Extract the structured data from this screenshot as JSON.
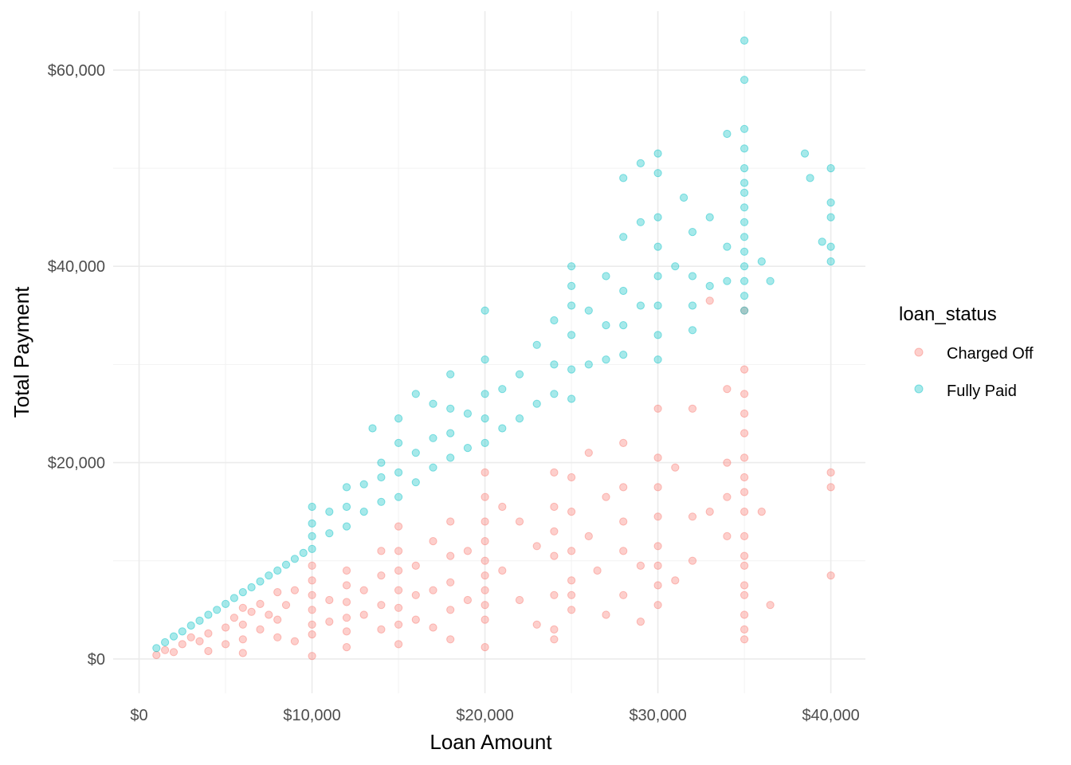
{
  "chart_data": {
    "type": "scatter",
    "title": "",
    "xlabel": "Loan Amount",
    "ylabel": "Total Payment",
    "xlim": [
      -1500,
      42000
    ],
    "ylim": [
      -3500,
      66000
    ],
    "x_ticks": [
      0,
      10000,
      20000,
      30000,
      40000
    ],
    "x_tick_labels": [
      "$0",
      "$10,000",
      "$20,000",
      "$30,000",
      "$40,000"
    ],
    "y_ticks": [
      0,
      20000,
      40000,
      60000
    ],
    "y_tick_labels": [
      "$0",
      "$20,000",
      "$40,000",
      "$60,000"
    ],
    "grid": true,
    "legend": {
      "title": "loan_status",
      "position": "right",
      "entries": [
        "Charged Off",
        "Fully Paid"
      ]
    },
    "point_alpha": 0.35,
    "series": [
      {
        "name": "Charged Off",
        "color": "#F8766D",
        "points": [
          [
            1000,
            400
          ],
          [
            1500,
            900
          ],
          [
            2000,
            700
          ],
          [
            2500,
            1500
          ],
          [
            3000,
            2200
          ],
          [
            3500,
            1800
          ],
          [
            4000,
            2600
          ],
          [
            4000,
            800
          ],
          [
            5000,
            3200
          ],
          [
            5000,
            1500
          ],
          [
            5500,
            4200
          ],
          [
            6000,
            5200
          ],
          [
            6000,
            3500
          ],
          [
            6000,
            2000
          ],
          [
            6000,
            600
          ],
          [
            6500,
            4800
          ],
          [
            7000,
            5600
          ],
          [
            7000,
            3000
          ],
          [
            7500,
            4500
          ],
          [
            8000,
            6800
          ],
          [
            8000,
            4000
          ],
          [
            8000,
            2200
          ],
          [
            8500,
            5500
          ],
          [
            9000,
            7000
          ],
          [
            9000,
            1800
          ],
          [
            10000,
            9500
          ],
          [
            10000,
            8000
          ],
          [
            10000,
            6500
          ],
          [
            10000,
            5000
          ],
          [
            10000,
            3500
          ],
          [
            10000,
            2500
          ],
          [
            10000,
            300
          ],
          [
            11000,
            6000
          ],
          [
            11000,
            3800
          ],
          [
            12000,
            9000
          ],
          [
            12000,
            7500
          ],
          [
            12000,
            5800
          ],
          [
            12000,
            4200
          ],
          [
            12000,
            2800
          ],
          [
            12000,
            1200
          ],
          [
            13000,
            7000
          ],
          [
            13000,
            4500
          ],
          [
            14000,
            11000
          ],
          [
            14000,
            8500
          ],
          [
            14000,
            5500
          ],
          [
            14000,
            3000
          ],
          [
            15000,
            13500
          ],
          [
            15000,
            11000
          ],
          [
            15000,
            9000
          ],
          [
            15000,
            7000
          ],
          [
            15000,
            5200
          ],
          [
            15000,
            3500
          ],
          [
            15000,
            1500
          ],
          [
            16000,
            9500
          ],
          [
            16000,
            6500
          ],
          [
            16000,
            4000
          ],
          [
            17000,
            12000
          ],
          [
            17000,
            7000
          ],
          [
            17000,
            3200
          ],
          [
            18000,
            14000
          ],
          [
            18000,
            10500
          ],
          [
            18000,
            7800
          ],
          [
            18000,
            5000
          ],
          [
            18000,
            2000
          ],
          [
            19000,
            11000
          ],
          [
            19000,
            6000
          ],
          [
            20000,
            19000
          ],
          [
            20000,
            16500
          ],
          [
            20000,
            14000
          ],
          [
            20000,
            12000
          ],
          [
            20000,
            10000
          ],
          [
            20000,
            8500
          ],
          [
            20000,
            7000
          ],
          [
            20000,
            5500
          ],
          [
            20000,
            4000
          ],
          [
            20000,
            1200
          ],
          [
            21000,
            15500
          ],
          [
            21000,
            9000
          ],
          [
            22000,
            14000
          ],
          [
            22000,
            6000
          ],
          [
            23000,
            11500
          ],
          [
            23000,
            3500
          ],
          [
            24000,
            19000
          ],
          [
            24000,
            15500
          ],
          [
            24000,
            13000
          ],
          [
            24000,
            10500
          ],
          [
            24000,
            6500
          ],
          [
            24000,
            3000
          ],
          [
            24000,
            2000
          ],
          [
            25000,
            18500
          ],
          [
            25000,
            15000
          ],
          [
            25000,
            11000
          ],
          [
            25000,
            8000
          ],
          [
            25000,
            6500
          ],
          [
            25000,
            5000
          ],
          [
            26000,
            21000
          ],
          [
            26000,
            12500
          ],
          [
            26500,
            9000
          ],
          [
            27000,
            16500
          ],
          [
            27000,
            4500
          ],
          [
            28000,
            22000
          ],
          [
            28000,
            17500
          ],
          [
            28000,
            14000
          ],
          [
            28000,
            11000
          ],
          [
            28000,
            6500
          ],
          [
            29000,
            9500
          ],
          [
            29000,
            3800
          ],
          [
            30000,
            25500
          ],
          [
            30000,
            20500
          ],
          [
            30000,
            17500
          ],
          [
            30000,
            14500
          ],
          [
            30000,
            11500
          ],
          [
            30000,
            9500
          ],
          [
            30000,
            7500
          ],
          [
            30000,
            5500
          ],
          [
            31000,
            19500
          ],
          [
            31000,
            8000
          ],
          [
            32000,
            25500
          ],
          [
            32000,
            14500
          ],
          [
            32000,
            10000
          ],
          [
            33000,
            36500
          ],
          [
            33000,
            15000
          ],
          [
            34000,
            27500
          ],
          [
            34000,
            20000
          ],
          [
            34000,
            16500
          ],
          [
            34000,
            12500
          ],
          [
            35000,
            35500
          ],
          [
            35000,
            29500
          ],
          [
            35000,
            27000
          ],
          [
            35000,
            25000
          ],
          [
            35000,
            23000
          ],
          [
            35000,
            20500
          ],
          [
            35000,
            18500
          ],
          [
            35000,
            17000
          ],
          [
            35000,
            15000
          ],
          [
            35000,
            12500
          ],
          [
            35000,
            10500
          ],
          [
            35000,
            9500
          ],
          [
            35000,
            7500
          ],
          [
            35000,
            6500
          ],
          [
            35000,
            4500
          ],
          [
            35000,
            3000
          ],
          [
            35000,
            2000
          ],
          [
            36000,
            15000
          ],
          [
            36500,
            5500
          ],
          [
            40000,
            19000
          ],
          [
            40000,
            17500
          ],
          [
            40000,
            8500
          ]
        ]
      },
      {
        "name": "Fully Paid",
        "color": "#00BFC4",
        "points": [
          [
            1000,
            1100
          ],
          [
            1500,
            1700
          ],
          [
            2000,
            2300
          ],
          [
            2500,
            2800
          ],
          [
            3000,
            3400
          ],
          [
            3500,
            3900
          ],
          [
            4000,
            4500
          ],
          [
            4500,
            5000
          ],
          [
            5000,
            5600
          ],
          [
            5500,
            6200
          ],
          [
            6000,
            6800
          ],
          [
            6500,
            7300
          ],
          [
            7000,
            7900
          ],
          [
            7500,
            8500
          ],
          [
            8000,
            9000
          ],
          [
            8500,
            9600
          ],
          [
            9000,
            10200
          ],
          [
            9500,
            10800
          ],
          [
            10000,
            11200
          ],
          [
            10000,
            12500
          ],
          [
            10000,
            13800
          ],
          [
            10000,
            15500
          ],
          [
            11000,
            12800
          ],
          [
            11000,
            15000
          ],
          [
            12000,
            13500
          ],
          [
            12000,
            15500
          ],
          [
            12000,
            17500
          ],
          [
            13000,
            15000
          ],
          [
            13000,
            17800
          ],
          [
            13500,
            23500
          ],
          [
            14000,
            16000
          ],
          [
            14000,
            18500
          ],
          [
            14000,
            20000
          ],
          [
            15000,
            16500
          ],
          [
            15000,
            19000
          ],
          [
            15000,
            22000
          ],
          [
            15000,
            24500
          ],
          [
            16000,
            18000
          ],
          [
            16000,
            21000
          ],
          [
            16000,
            27000
          ],
          [
            17000,
            19500
          ],
          [
            17000,
            22500
          ],
          [
            17000,
            26000
          ],
          [
            18000,
            20500
          ],
          [
            18000,
            23000
          ],
          [
            18000,
            25500
          ],
          [
            18000,
            29000
          ],
          [
            19000,
            21500
          ],
          [
            19000,
            25000
          ],
          [
            20000,
            22000
          ],
          [
            20000,
            24500
          ],
          [
            20000,
            27000
          ],
          [
            20000,
            30500
          ],
          [
            20000,
            35500
          ],
          [
            21000,
            23500
          ],
          [
            21000,
            27500
          ],
          [
            22000,
            24500
          ],
          [
            22000,
            29000
          ],
          [
            23000,
            26000
          ],
          [
            23000,
            32000
          ],
          [
            24000,
            27000
          ],
          [
            24000,
            30000
          ],
          [
            24000,
            34500
          ],
          [
            25000,
            26500
          ],
          [
            25000,
            29500
          ],
          [
            25000,
            33000
          ],
          [
            25000,
            36000
          ],
          [
            25000,
            38000
          ],
          [
            25000,
            40000
          ],
          [
            26000,
            30000
          ],
          [
            26000,
            35500
          ],
          [
            27000,
            30500
          ],
          [
            27000,
            34000
          ],
          [
            27000,
            39000
          ],
          [
            28000,
            31000
          ],
          [
            28000,
            34000
          ],
          [
            28000,
            37500
          ],
          [
            28000,
            43000
          ],
          [
            28000,
            49000
          ],
          [
            29000,
            36000
          ],
          [
            29000,
            44500
          ],
          [
            29000,
            50500
          ],
          [
            30000,
            30500
          ],
          [
            30000,
            33000
          ],
          [
            30000,
            36000
          ],
          [
            30000,
            39000
          ],
          [
            30000,
            42000
          ],
          [
            30000,
            45000
          ],
          [
            30000,
            49500
          ],
          [
            30000,
            51500
          ],
          [
            31000,
            40000
          ],
          [
            31500,
            47000
          ],
          [
            32000,
            33500
          ],
          [
            32000,
            36000
          ],
          [
            32000,
            39000
          ],
          [
            32000,
            43500
          ],
          [
            33000,
            38000
          ],
          [
            33000,
            45000
          ],
          [
            34000,
            38500
          ],
          [
            34000,
            42000
          ],
          [
            34000,
            53500
          ],
          [
            35000,
            35500
          ],
          [
            35000,
            37000
          ],
          [
            35000,
            38500
          ],
          [
            35000,
            40000
          ],
          [
            35000,
            41500
          ],
          [
            35000,
            43000
          ],
          [
            35000,
            44500
          ],
          [
            35000,
            46000
          ],
          [
            35000,
            47500
          ],
          [
            35000,
            48500
          ],
          [
            35000,
            50000
          ],
          [
            35000,
            52000
          ],
          [
            35000,
            54000
          ],
          [
            35000,
            59000
          ],
          [
            35000,
            63000
          ],
          [
            36000,
            40500
          ],
          [
            36500,
            38500
          ],
          [
            38500,
            51500
          ],
          [
            38800,
            49000
          ],
          [
            39500,
            42500
          ],
          [
            40000,
            50000
          ],
          [
            40000,
            46500
          ],
          [
            40000,
            45000
          ],
          [
            40000,
            42000
          ],
          [
            40000,
            40500
          ]
        ]
      }
    ]
  }
}
